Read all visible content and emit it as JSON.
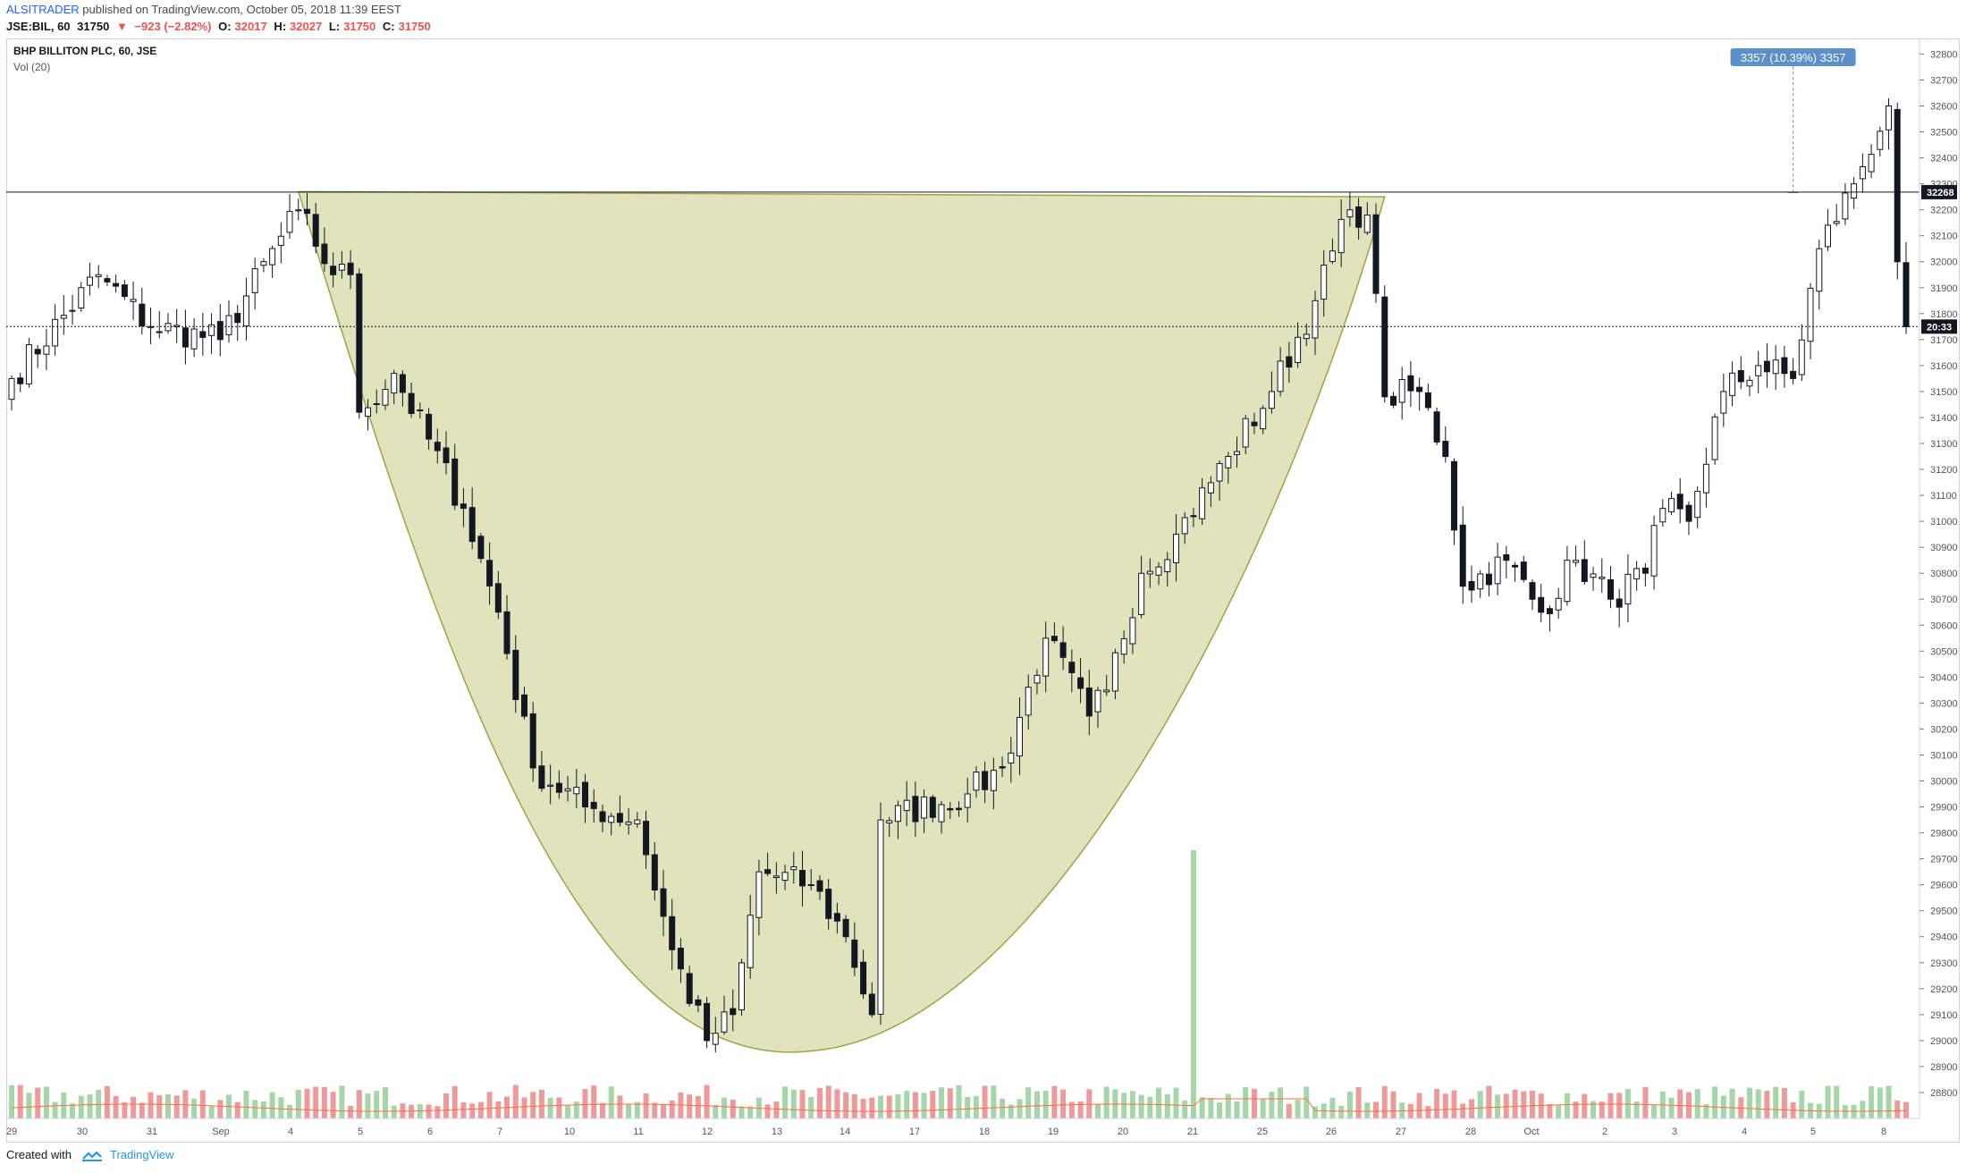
{
  "header": {
    "author": "ALSITRADER",
    "published": "published on TradingView.com, October 05, 2018 11:39 EEST",
    "quote": {
      "symbol": "JSE:BIL, 60",
      "last": "31750",
      "change": "−923 (−2.82%)",
      "open": "32017",
      "high": "32027",
      "low": "31750",
      "close": "31750"
    }
  },
  "legend": {
    "title": "BHP BILLITON PLC, 60, JSE",
    "volume": "Vol (20)"
  },
  "footer": {
    "created_with": "Created with",
    "brand": "TradingView"
  },
  "colors": {
    "bull_body": "#ffffff",
    "bear_body": "#131722",
    "wick": "#131722",
    "cup_fill": "#cdd08f",
    "cup_stroke": "#9ea344",
    "vol_up": "#a5d6a7",
    "vol_down": "#ef9a9a",
    "measure": "#5d8fc9",
    "accent": "#2962ff"
  },
  "chart_data": {
    "type": "candlestick",
    "title": "BHP BILLITON PLC, 60, JSE",
    "ylim": [
      28700,
      32860
    ],
    "y_ticks": [
      28800,
      28900,
      29000,
      29100,
      29200,
      29300,
      29400,
      29500,
      29600,
      29700,
      29800,
      29900,
      30000,
      30100,
      30200,
      30300,
      30400,
      30500,
      30600,
      30700,
      30800,
      30900,
      31000,
      31100,
      31200,
      31300,
      31400,
      31500,
      31600,
      31700,
      31800,
      31900,
      32000,
      32100,
      32200,
      32300,
      32400,
      32500,
      32600,
      32700,
      32800
    ],
    "x_ticks": [
      "29",
      "30",
      "31",
      "Sep",
      "4",
      "5",
      "6",
      "7",
      "10",
      "11",
      "12",
      "13",
      "14",
      "17",
      "18",
      "19",
      "20",
      "21",
      "25",
      "26",
      "27",
      "28",
      "Oct",
      "2",
      "3",
      "4",
      "5",
      "8"
    ],
    "price_labels": {
      "resistance": "32268",
      "last": "20:33"
    },
    "horizontal_lines": {
      "resistance": 32268,
      "last": 31750
    },
    "measure": {
      "label": "3357 (10.39%) 3357",
      "from": 28910,
      "to": 32267
    },
    "cup_pattern": {
      "left_rim": 32270,
      "right_rim": 32250,
      "bottom": 28960
    },
    "anchors": [
      {
        "i": 0,
        "p": 31550
      },
      {
        "i": 10,
        "p": 31950
      },
      {
        "i": 16,
        "p": 31750
      },
      {
        "i": 24,
        "p": 31700
      },
      {
        "i": 33,
        "p": 32200
      },
      {
        "i": 37,
        "p": 31950
      },
      {
        "i": 39,
        "p": 31950
      },
      {
        "i": 40,
        "p": 31420
      },
      {
        "i": 44,
        "p": 31570
      },
      {
        "i": 52,
        "p": 31050
      },
      {
        "i": 56,
        "p": 30650
      },
      {
        "i": 60,
        "p": 30050
      },
      {
        "i": 66,
        "p": 29900
      },
      {
        "i": 72,
        "p": 29850
      },
      {
        "i": 76,
        "p": 29350
      },
      {
        "i": 80,
        "p": 29000
      },
      {
        "i": 83,
        "p": 29100
      },
      {
        "i": 86,
        "p": 29650
      },
      {
        "i": 92,
        "p": 29600
      },
      {
        "i": 96,
        "p": 29400
      },
      {
        "i": 99,
        "p": 29100
      },
      {
        "i": 100,
        "p": 29850
      },
      {
        "i": 110,
        "p": 29950
      },
      {
        "i": 114,
        "p": 30050
      },
      {
        "i": 119,
        "p": 30550
      },
      {
        "i": 124,
        "p": 30250
      },
      {
        "i": 126,
        "p": 30350
      },
      {
        "i": 130,
        "p": 30800
      },
      {
        "i": 134,
        "p": 30950
      },
      {
        "i": 140,
        "p": 31250
      },
      {
        "i": 145,
        "p": 31500
      },
      {
        "i": 150,
        "p": 31850
      },
      {
        "i": 154,
        "p": 32200
      },
      {
        "i": 156,
        "p": 32180
      },
      {
        "i": 158,
        "p": 31480
      },
      {
        "i": 162,
        "p": 31500
      },
      {
        "i": 165,
        "p": 31250
      },
      {
        "i": 167,
        "p": 30750
      },
      {
        "i": 172,
        "p": 30850
      },
      {
        "i": 176,
        "p": 30650
      },
      {
        "i": 180,
        "p": 30850
      },
      {
        "i": 184,
        "p": 30700
      },
      {
        "i": 188,
        "p": 30800
      },
      {
        "i": 190,
        "p": 31050
      },
      {
        "i": 193,
        "p": 31000
      },
      {
        "i": 197,
        "p": 31500
      },
      {
        "i": 201,
        "p": 31600
      },
      {
        "i": 205,
        "p": 31550
      },
      {
        "i": 208,
        "p": 32050
      },
      {
        "i": 212,
        "p": 32300
      },
      {
        "i": 216,
        "p": 32600
      },
      {
        "i": 217,
        "p": 32000
      },
      {
        "i": 218,
        "p": 31750
      }
    ],
    "volume_spike": {
      "i": 136,
      "value": 20000
    }
  }
}
